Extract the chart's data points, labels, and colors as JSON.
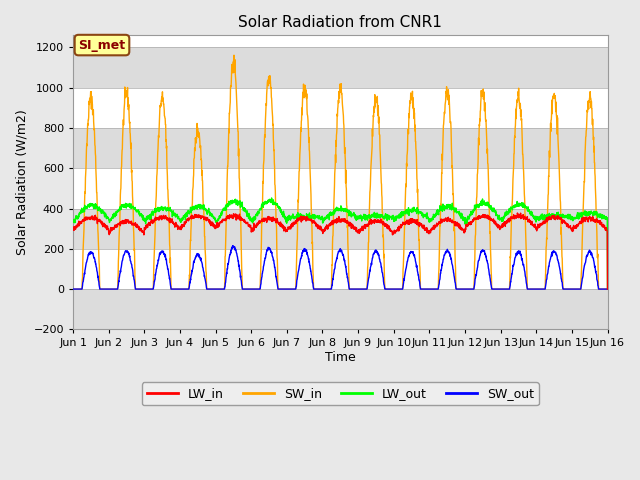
{
  "title": "Solar Radiation from CNR1",
  "xlabel": "Time",
  "ylabel": "Solar Radiation (W/m2)",
  "ylim": [
    -200,
    1260
  ],
  "yticks": [
    -200,
    0,
    200,
    400,
    600,
    800,
    1000,
    1200
  ],
  "xlim": [
    0,
    15
  ],
  "xtick_labels": [
    "Jun 1",
    "Jun 2",
    "Jun 3",
    "Jun 4",
    "Jun 5",
    "Jun 6",
    "Jun 7",
    "Jun 8",
    "Jun 9",
    "Jun 10",
    "Jun 11",
    "Jun 12",
    "Jun 13",
    "Jun 14",
    "Jun 15",
    "Jun 16"
  ],
  "annotation_text": "SI_met",
  "line_colors": {
    "LW_in": "#FF0000",
    "SW_in": "#FFA500",
    "LW_out": "#00FF00",
    "SW_out": "#0000FF"
  },
  "line_width": 1.0,
  "fig_bg_color": "#E8E8E8",
  "plot_bg_color": "#FFFFFF",
  "stripe_color": "#DCDCDC",
  "stripe_ranges": [
    [
      -200,
      0
    ],
    [
      200,
      400
    ],
    [
      600,
      800
    ],
    [
      1000,
      1200
    ]
  ],
  "legend_colors": [
    "#FF0000",
    "#FFA500",
    "#00FF00",
    "#0000FF"
  ],
  "legend_labels": [
    "LW_in",
    "SW_in",
    "LW_out",
    "SW_out"
  ],
  "num_days": 15,
  "points_per_day": 144
}
